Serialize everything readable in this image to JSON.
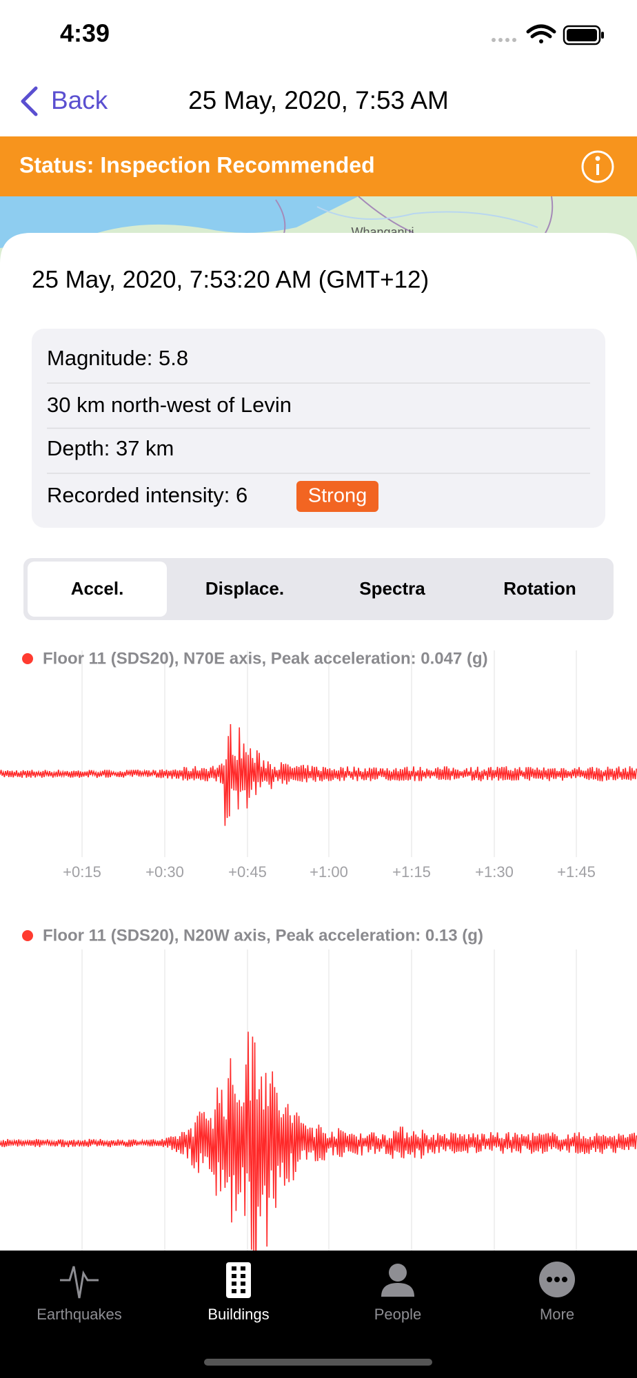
{
  "status_bar": {
    "time": "4:39"
  },
  "nav": {
    "back": "Back",
    "title": "25 May, 2020, 7:53 AM"
  },
  "banner": {
    "status": "Status: Inspection Recommended"
  },
  "map": {
    "label": "Whanganui"
  },
  "event": {
    "datetime": "25 May, 2020, 7:53:20 AM (GMT+12)",
    "details": [
      "Magnitude: 5.8",
      "30 km north-west of Levin",
      "Depth: 37 km",
      "Recorded intensity: 6"
    ],
    "intensity_badge": "Strong"
  },
  "tabs": {
    "items": [
      "Accel.",
      "Displace.",
      "Spectra",
      "Rotation"
    ],
    "selected": 0
  },
  "charts": [
    {
      "caption": "Floor 11 (SDS20), N70E axis, Peak acceleration: 0.047 (g)"
    },
    {
      "caption": "Floor 11 (SDS20), N20W axis, Peak acceleration: 0.13 (g)"
    }
  ],
  "time_axis": [
    "+0:15",
    "+0:30",
    "+0:45",
    "+1:00",
    "+1:15",
    "+1:30",
    "+1:45"
  ],
  "tab_bar": {
    "items": [
      "Earthquakes",
      "Buildings",
      "People",
      "More"
    ],
    "selected": 1
  }
}
